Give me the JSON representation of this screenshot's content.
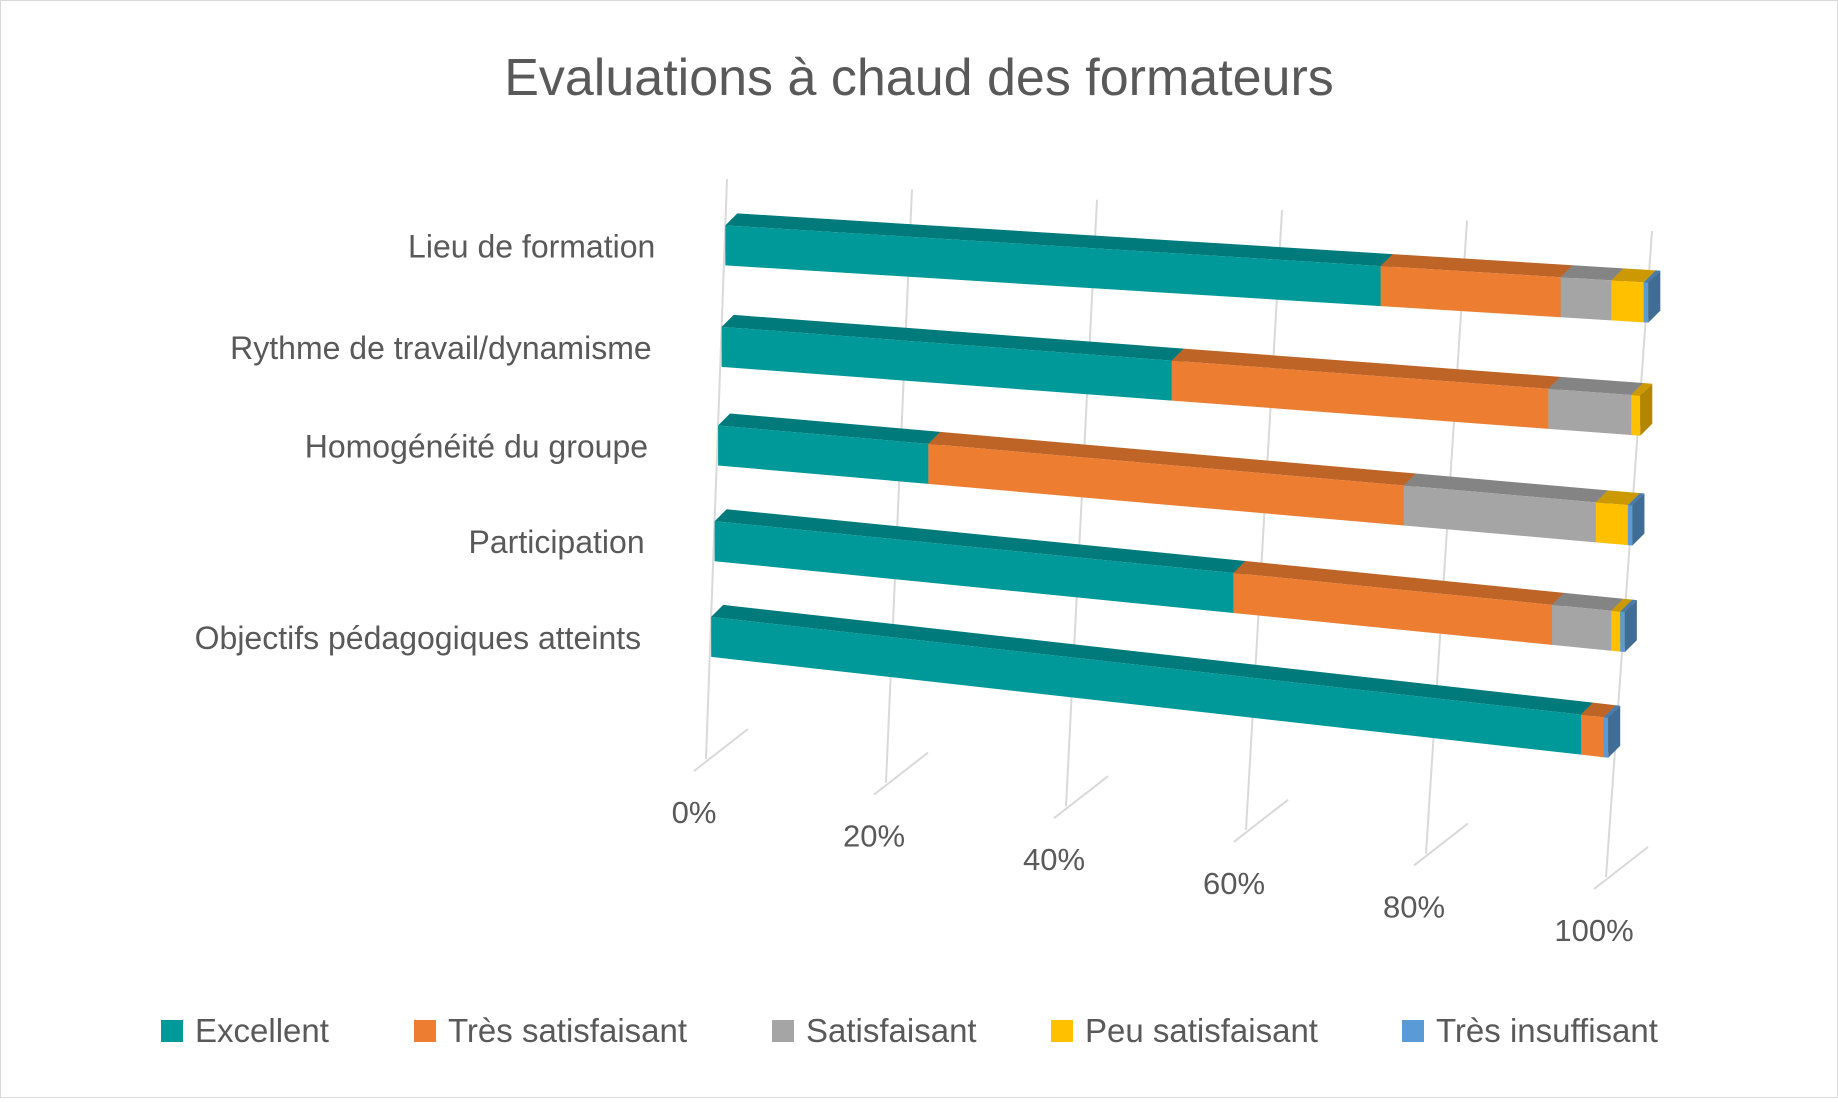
{
  "chart_data": {
    "type": "bar",
    "orientation": "horizontal",
    "stacking": "percent",
    "style": "3d",
    "title": "Evaluations à chaud des formateurs",
    "categories": [
      "Lieu de formation",
      "Rythme de travail/dynamisme",
      "Homogénéité du groupe",
      "Participation",
      "Objectifs pédagogiques atteints"
    ],
    "series": [
      {
        "name": "Excellent",
        "color": "#009999",
        "values": [
          71,
          49,
          23,
          57,
          96
        ]
      },
      {
        "name": "Très satisfaisant",
        "color": "#ED7D31",
        "values": [
          19.5,
          41,
          52,
          35,
          2.5
        ]
      },
      {
        "name": "Satisfaisant",
        "color": "#A5A5A5",
        "values": [
          5.5,
          9,
          21,
          6.5,
          0
        ]
      },
      {
        "name": "Peu satisfaisant",
        "color": "#FFC000",
        "values": [
          3.5,
          1,
          3.5,
          1,
          0
        ]
      },
      {
        "name": "Très insuffisant",
        "color": "#5B9BD5",
        "values": [
          0.5,
          0,
          0.5,
          0.5,
          0.5
        ]
      }
    ],
    "x_ticks": [
      "0%",
      "20%",
      "40%",
      "60%",
      "80%",
      "100%"
    ],
    "xlim": [
      0,
      100
    ],
    "grid": true,
    "legend_position": "bottom"
  }
}
